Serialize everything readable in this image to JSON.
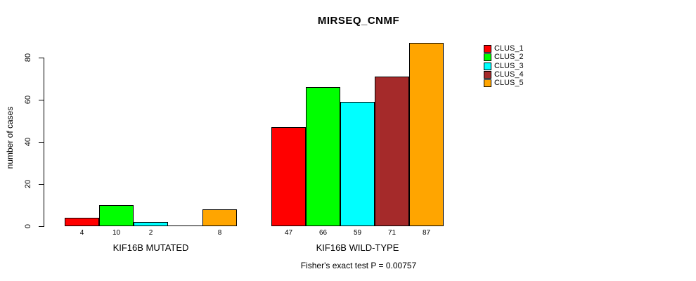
{
  "title": "MIRSEQ_CNMF",
  "ylabel": "number of cases",
  "annotation": "Fisher's exact test P = 0.00757",
  "chart_data": {
    "type": "bar",
    "title": "MIRSEQ_CNMF",
    "ylabel": "number of cases",
    "annotation": "Fisher's exact test P = 0.00757",
    "categories": [
      "KIF16B MUTATED",
      "KIF16B WILD-TYPE"
    ],
    "series": [
      {
        "name": "CLUS_1",
        "color": "#FF0000",
        "values": [
          4,
          47
        ]
      },
      {
        "name": "CLUS_2",
        "color": "#00FF00",
        "values": [
          10,
          66
        ]
      },
      {
        "name": "CLUS_3",
        "color": "#00FFFF",
        "values": [
          2,
          59
        ]
      },
      {
        "name": "CLUS_4",
        "color": "#A52A2A",
        "values": [
          0,
          71
        ]
      },
      {
        "name": "CLUS_5",
        "color": "#FFA500",
        "values": [
          8,
          87
        ]
      }
    ],
    "value_labels": [
      [
        "4",
        "10",
        "2",
        "",
        "8"
      ],
      [
        "47",
        "66",
        "59",
        "71",
        "87"
      ]
    ],
    "yticks": [
      0,
      20,
      40,
      60,
      80
    ],
    "ylim": [
      0,
      80
    ],
    "grid": false,
    "legend_position": "right-outside",
    "bar_border_color": "#000000",
    "background_color": "#FFFFFF"
  }
}
